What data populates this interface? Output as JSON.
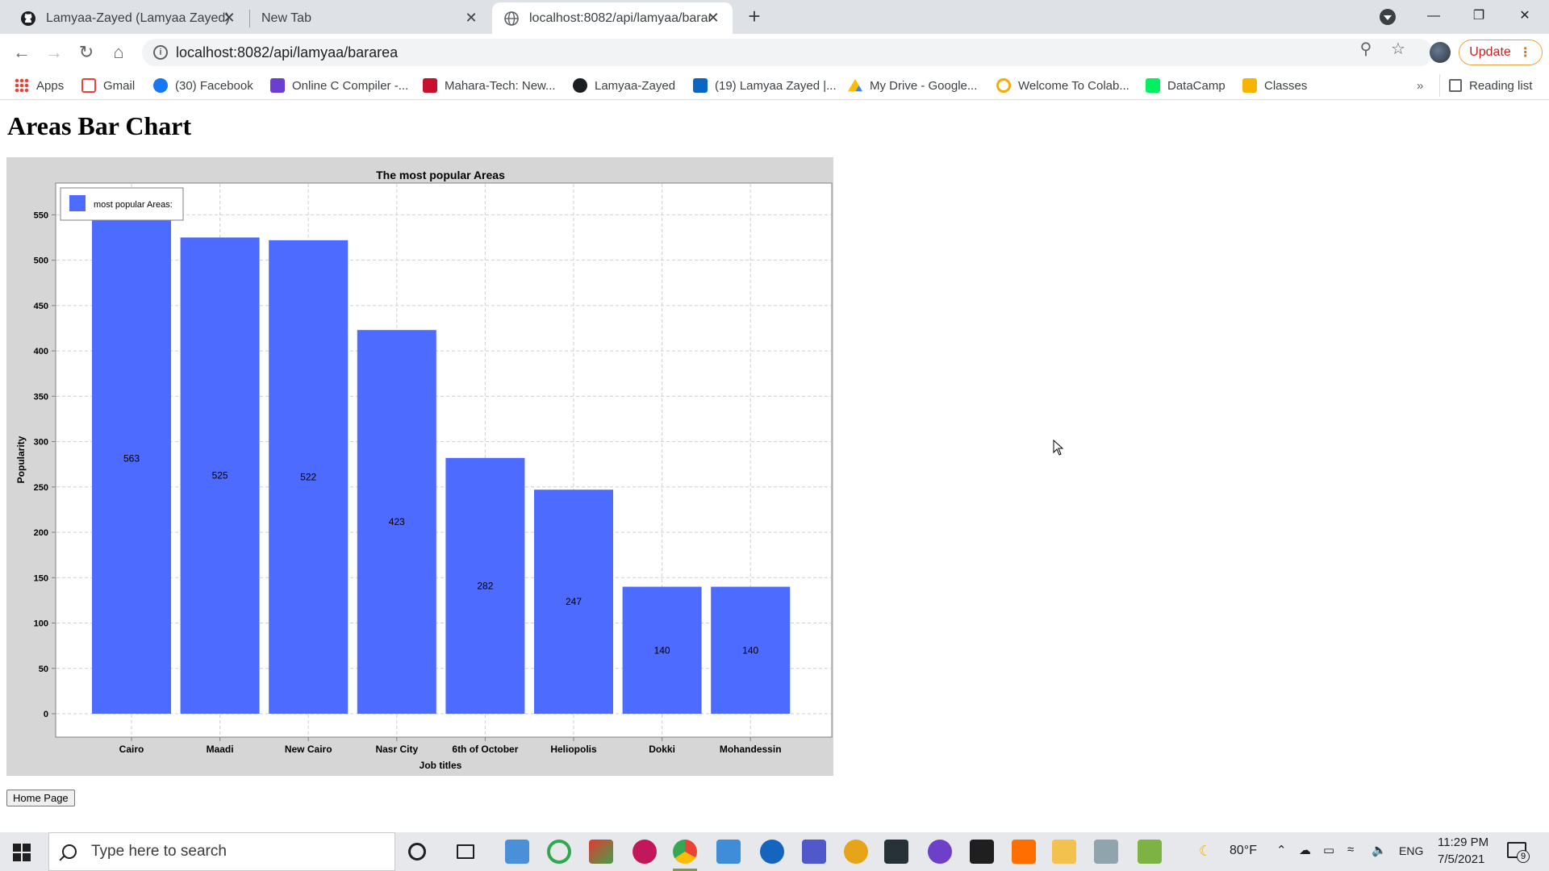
{
  "browser": {
    "tabs": [
      {
        "label": "Lamyaa-Zayed (Lamyaa Zayed)",
        "icon": "github-icon",
        "active": false
      },
      {
        "label": "New Tab",
        "icon": "",
        "active": false
      },
      {
        "label": "localhost:8082/api/lamyaa/barar",
        "icon": "globe-icon",
        "active": true
      }
    ],
    "new_tab_label": "+",
    "url": "localhost:8082/api/lamyaa/bararea",
    "update_label": "Update",
    "bookmarks": [
      {
        "label": "Apps",
        "icon": "apps-grid-icon",
        "color": "#4285f4"
      },
      {
        "label": "Gmail",
        "icon": "gmail-icon",
        "color": "#ea4335"
      },
      {
        "label": "(30) Facebook",
        "icon": "facebook-icon",
        "color": "#1877f2"
      },
      {
        "label": "Online C Compiler -...",
        "icon": "compiler-icon",
        "color": "#6a3fd0"
      },
      {
        "label": "Mahara-Tech: New...",
        "icon": "mahara-tech-icon",
        "color": "#c8102e"
      },
      {
        "label": "Lamyaa-Zayed",
        "icon": "github-icon",
        "color": "#1b1f23"
      },
      {
        "label": "(19) Lamyaa Zayed |...",
        "icon": "linkedin-icon",
        "color": "#0a66c2"
      },
      {
        "label": "My Drive - Google...",
        "icon": "google-drive-icon",
        "color": "#fbbc04"
      },
      {
        "label": "Welcome To Colab...",
        "icon": "colab-icon",
        "color": "#f9ab00"
      },
      {
        "label": "DataCamp",
        "icon": "datacamp-icon",
        "color": "#03ef62"
      },
      {
        "label": "Classes",
        "icon": "classroom-icon",
        "color": "#f4b400"
      }
    ],
    "bookmarks_more": "»",
    "reading_list": "Reading list"
  },
  "page": {
    "heading": "Areas Bar Chart",
    "home_button": "Home Page"
  },
  "chart_data": {
    "type": "bar",
    "title": "The most popular Areas",
    "xlabel": "Job titles",
    "ylabel": "Popularity",
    "categories": [
      "Cairo",
      "Maadi",
      "New Cairo",
      "Nasr City",
      "6th of October",
      "Heliopolis",
      "Dokki",
      "Mohandessin"
    ],
    "series": [
      {
        "name": "most popular Areas:",
        "values": [
          563,
          525,
          522,
          423,
          282,
          247,
          140,
          140
        ],
        "color": "#4d6bfe"
      }
    ],
    "ylim": [
      0,
      585
    ],
    "yticks": [
      0,
      50,
      100,
      150,
      200,
      250,
      300,
      350,
      400,
      450,
      500,
      550
    ],
    "grid": true,
    "legend_position": "top-left",
    "data_labels": true
  },
  "taskbar": {
    "search_placeholder": "Type here to search",
    "weather": "80°F",
    "language": "ENG",
    "time": "11:29 PM",
    "date": "7/5/2021",
    "notification_count": "9"
  }
}
